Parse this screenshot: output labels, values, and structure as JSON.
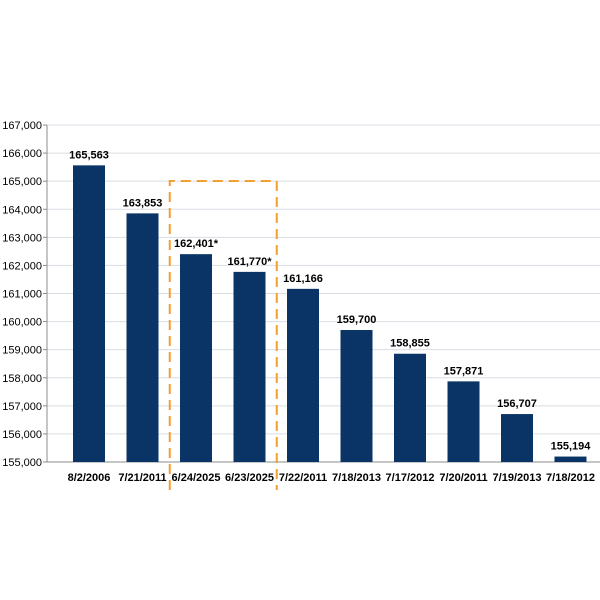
{
  "chart_data": {
    "type": "bar",
    "categories": [
      "8/2/2006",
      "7/21/2011",
      "6/24/2025",
      "6/23/2025",
      "7/22/2011",
      "7/18/2013",
      "7/17/2012",
      "7/20/2011",
      "7/19/2013",
      "7/18/2012"
    ],
    "values": [
      165563,
      163853,
      162401,
      161770,
      161166,
      159700,
      158855,
      157871,
      156707,
      155194
    ],
    "data_labels": [
      "165,563",
      "163,853",
      "162,401*",
      "161,770*",
      "161,166",
      "159,700",
      "158,855",
      "157,871",
      "156,707",
      "155,194"
    ],
    "ylim": [
      155000,
      167000
    ],
    "yticks": [
      155000,
      156000,
      157000,
      158000,
      159000,
      160000,
      161000,
      162000,
      163000,
      164000,
      165000,
      166000,
      167000
    ],
    "ytick_labels": [
      "155,000",
      "156,000",
      "157,000",
      "158,000",
      "159,000",
      "160,000",
      "161,000",
      "162,000",
      "163,000",
      "164,000",
      "165,000",
      "166,000",
      "167,000"
    ],
    "grid": true,
    "highlight": {
      "categories": [
        "6/24/2025",
        "6/23/2025"
      ],
      "style": "dashed box"
    },
    "colors": {
      "bar": "#0b3466",
      "highlight_box": "#f0a030",
      "grid": "#d9dde3",
      "axis": "#8c8c8c"
    }
  }
}
